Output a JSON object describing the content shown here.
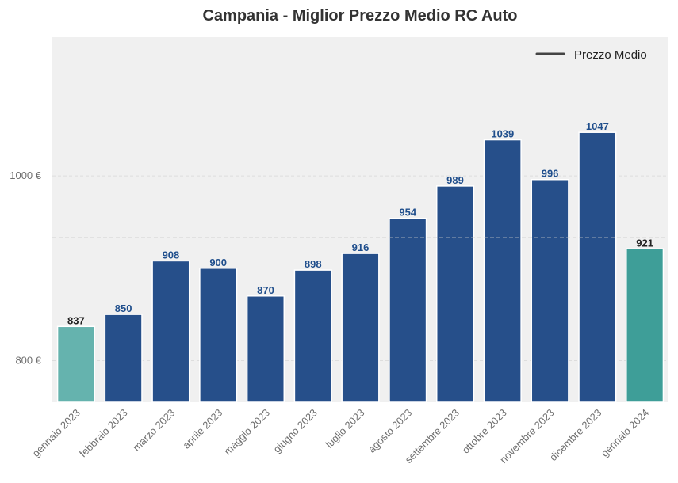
{
  "chart_data": {
    "type": "bar",
    "title": "Campania - Miglior Prezzo Medio RC Auto",
    "categories": [
      "gennaio 2023",
      "febbraio 2023",
      "marzo 2023",
      "aprile 2023",
      "maggio 2023",
      "giugno 2023",
      "luglio 2023",
      "agosto 2023",
      "settembre 2023",
      "ottobre 2023",
      "novembre 2023",
      "dicembre 2023",
      "gennaio 2024"
    ],
    "values": [
      837,
      850,
      908,
      900,
      870,
      898,
      916,
      954,
      989,
      1039,
      996,
      1047,
      921
    ],
    "data_labels": [
      "837",
      "850",
      "908",
      "900",
      "870",
      "898",
      "916",
      "954",
      "989",
      "1039",
      "996",
      "1047",
      "921"
    ],
    "average_line": {
      "name": "Prezzo Medio",
      "value": 933
    },
    "yticks": [
      {
        "value": 800,
        "label": "800 €"
      },
      {
        "value": 1000,
        "label": "1000 €"
      }
    ],
    "ylim": [
      755,
      1150
    ],
    "xlabel": "",
    "ylabel": "",
    "grid": true,
    "legend": {
      "entries": [
        "Prezzo Medio"
      ],
      "placement": "top-right"
    },
    "colors": {
      "bar": "#264f8a",
      "bar_first": "#65b3ae",
      "bar_last": "#3e9e98",
      "label": "#1f4e8c",
      "label_endpoints": "#222222",
      "plot_bg": "#f0f0f0",
      "grid": "#dddddd",
      "avg_line": "#c8c8c8",
      "legend_line": "#444444"
    }
  }
}
